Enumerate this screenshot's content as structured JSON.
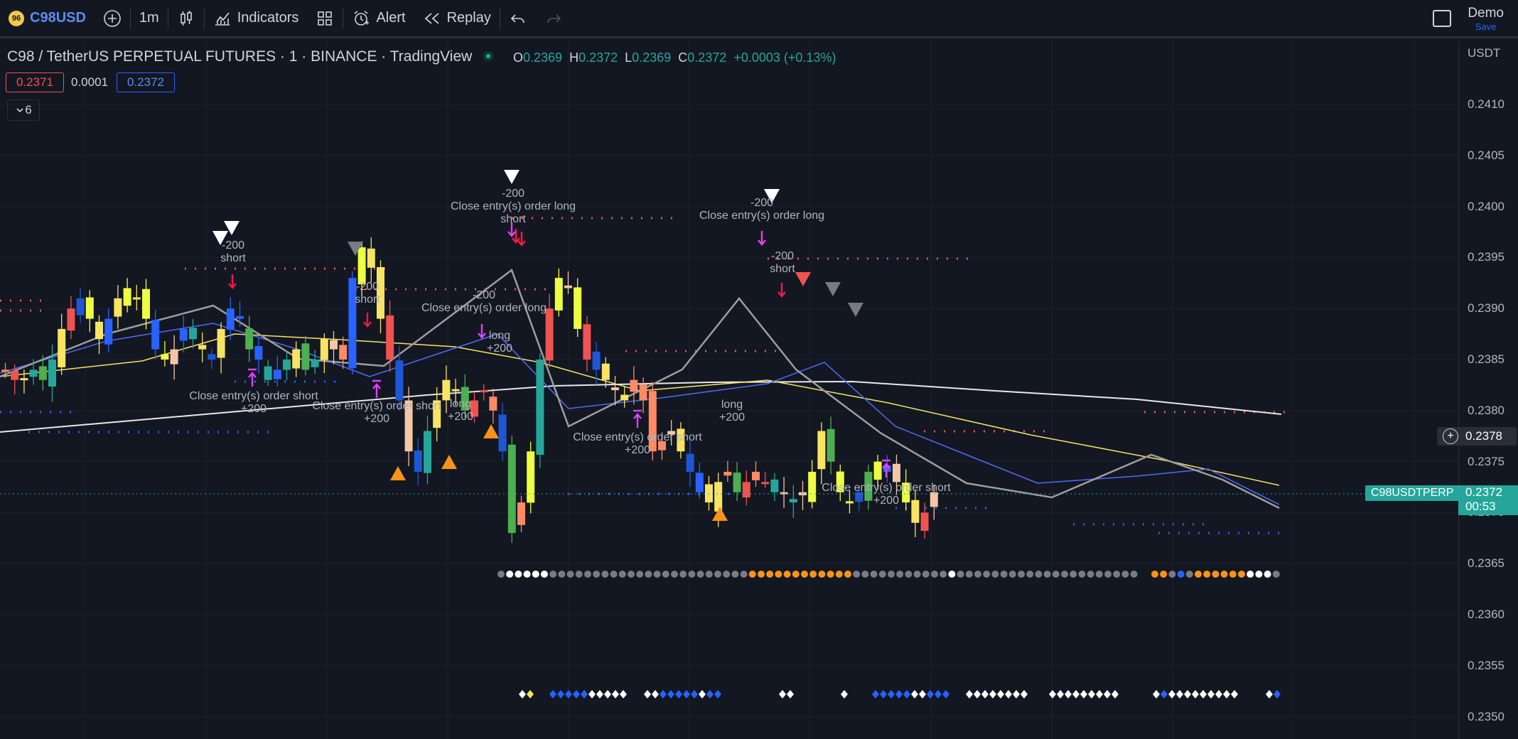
{
  "toolbar": {
    "symbol_badge": "96",
    "symbol": "C98USD",
    "interval": "1m",
    "indicators_label": "Indicators",
    "alert_label": "Alert",
    "replay_label": "Replay",
    "demo_label": "Demo",
    "save_label": "Save"
  },
  "legend": {
    "title": "C98 / TetherUS PERPETUAL FUTURES · 1 · BINANCE · TradingView",
    "o_key": "O",
    "o_val": "0.2369",
    "h_key": "H",
    "h_val": "0.2372",
    "l_key": "L",
    "l_val": "0.2369",
    "c_key": "C",
    "c_val": "0.2372",
    "change": "+0.0003 (+0.13%)",
    "bid": "0.2371",
    "spread": "0.0001",
    "ask": "0.2372",
    "collapse_count": "6"
  },
  "axis": {
    "currency": "USDT",
    "ticks": [
      "0.2410",
      "0.2405",
      "0.2400",
      "0.2395",
      "0.2390",
      "0.2385",
      "0.2380",
      "0.2375",
      "0.2370",
      "0.2365",
      "0.2360",
      "0.2355",
      "0.2350"
    ],
    "crosshair_price": "0.2378",
    "last_price": "0.2372",
    "countdown": "00:53",
    "symbol_tag": "C98USDTPERP"
  },
  "colors": {
    "background": "#131722",
    "up": "#26a69a",
    "down": "#ef5350",
    "accent": "#2962ff"
  },
  "annotations": [
    {
      "id": "a1",
      "lines": [
        "-200",
        "short"
      ]
    },
    {
      "id": "a2",
      "lines": [
        "-200",
        "short"
      ]
    },
    {
      "id": "a3",
      "lines": [
        "Close entry(s) order short",
        "+200"
      ]
    },
    {
      "id": "a4",
      "lines": [
        "Close entry(s) order short",
        "+200"
      ]
    },
    {
      "id": "a5",
      "lines": [
        "long",
        "+200"
      ]
    },
    {
      "id": "a6",
      "lines": [
        "-200",
        "Close entry(s) order long",
        "short"
      ]
    },
    {
      "id": "a7",
      "lines": [
        "-200",
        "Close entry(s) order long"
      ]
    },
    {
      "id": "a8",
      "lines": [
        "long",
        "+200"
      ]
    },
    {
      "id": "a9",
      "lines": [
        "Close entry(s) order short",
        "+200"
      ]
    },
    {
      "id": "a10",
      "lines": [
        "long",
        "+200"
      ]
    },
    {
      "id": "a11",
      "lines": [
        "-200",
        "Close entry(s) order long"
      ]
    },
    {
      "id": "a12",
      "lines": [
        "-200",
        "short"
      ]
    },
    {
      "id": "a13",
      "lines": [
        "Close entry(s) order short",
        "+200"
      ]
    }
  ]
}
